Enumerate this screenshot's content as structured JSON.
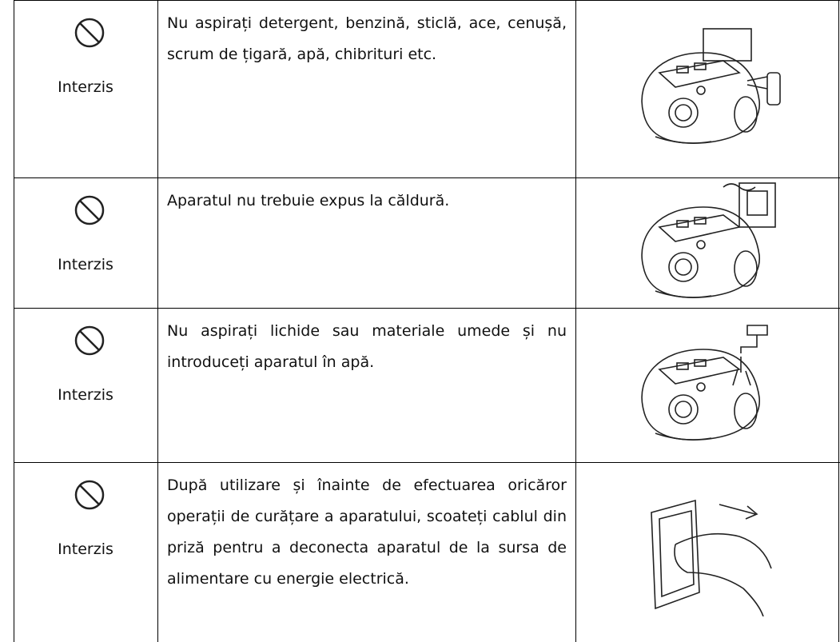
{
  "table": {
    "rows": [
      {
        "label": "Interzis",
        "text": "Nu aspirați detergent, benzină, sticlă, ace, cenușă, scrum de țigară, apă, chibrituri etc."
      },
      {
        "label": "Interzis",
        "text": "Aparatul nu trebuie expus la căldură."
      },
      {
        "label": "Interzis",
        "text": "Nu aspirați lichide sau materiale umede și nu introduceți aparatul în apă."
      },
      {
        "label": "Interzis",
        "text": "După utilizare și înainte de efectuarea oricăror operații de curățare a aparatului, scoateți cablul din priză pentru a deconecta aparatul de la sursa de alimentare cu energie electrică."
      }
    ]
  }
}
